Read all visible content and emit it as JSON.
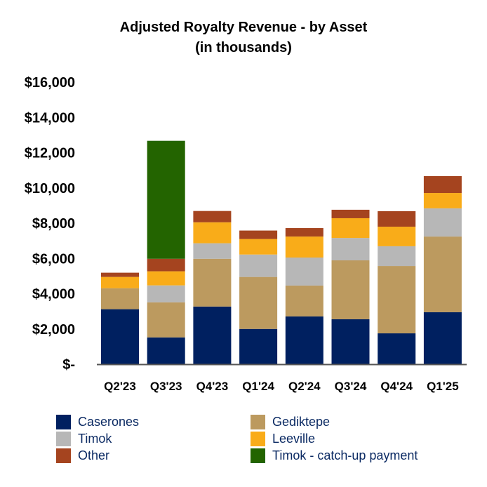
{
  "chart_data": {
    "type": "bar",
    "stacked": true,
    "title": "Adjusted Royalty Revenue - by Asset",
    "subtitle": "(in thousands)",
    "xlabel": "",
    "ylabel": "",
    "ylim": [
      0,
      16000
    ],
    "yticks": [
      0,
      2000,
      4000,
      6000,
      8000,
      10000,
      12000,
      14000,
      16000
    ],
    "ytick_labels": [
      "$-",
      "$2,000",
      "$4,000",
      "$6,000",
      "$8,000",
      "$10,000",
      "$12,000",
      "$14,000",
      "$16,000"
    ],
    "grid": false,
    "legend_placement": "bottom",
    "categories": [
      "Q2'23",
      "Q3'23",
      "Q4'23",
      "Q1'24",
      "Q2'24",
      "Q3'24",
      "Q4'24",
      "Q1'25"
    ],
    "series": [
      {
        "name": "Caserones",
        "color": "#002060",
        "values": [
          3120,
          1520,
          3270,
          2000,
          2710,
          2550,
          1750,
          2950
        ]
      },
      {
        "name": "Gediktepe",
        "color": "#bc9a5f",
        "values": [
          1190,
          1990,
          2710,
          2950,
          1750,
          3340,
          3820,
          4290
        ]
      },
      {
        "name": "Timok",
        "color": "#b7b7b7",
        "values": [
          0,
          960,
          880,
          1270,
          1590,
          1270,
          1120,
          1600
        ]
      },
      {
        "name": "Leeville",
        "color": "#f9ac19",
        "values": [
          640,
          800,
          1190,
          880,
          1190,
          1120,
          1110,
          870
        ]
      },
      {
        "name": "Other",
        "color": "#a5441f",
        "values": [
          240,
          710,
          640,
          480,
          480,
          480,
          880,
          960
        ]
      },
      {
        "name": "Timok - catch-up payment",
        "color": "#236400",
        "values": [
          0,
          6690,
          0,
          0,
          0,
          0,
          0,
          0
        ]
      }
    ]
  }
}
